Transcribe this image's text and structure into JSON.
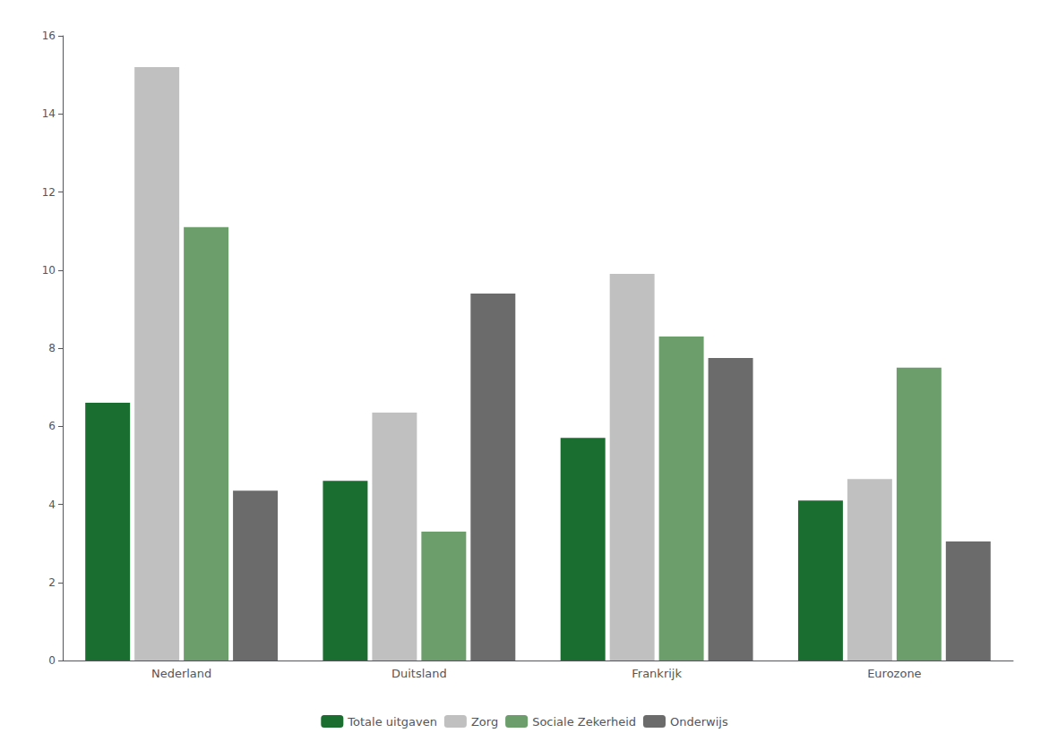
{
  "chart_data": {
    "type": "bar",
    "categories": [
      "Nederland",
      "Duitsland",
      "Frankrijk",
      "Eurozone"
    ],
    "series": [
      {
        "name": "Totale uitgaven",
        "color": "#1a6e30",
        "values": [
          6.6,
          4.6,
          5.7,
          4.1
        ]
      },
      {
        "name": "Zorg",
        "color": "#c0c0c0",
        "values": [
          15.2,
          6.35,
          9.9,
          4.65
        ]
      },
      {
        "name": "Sociale Zekerheid",
        "color": "#6b9e6b",
        "values": [
          11.1,
          3.3,
          8.3,
          7.5
        ]
      },
      {
        "name": "Onderwijs",
        "color": "#6b6b6b",
        "values": [
          4.35,
          9.4,
          7.75,
          3.05
        ]
      }
    ],
    "ylim": [
      0,
      16
    ],
    "yticks": [
      0,
      2,
      4,
      6,
      8,
      10,
      12,
      14,
      16
    ],
    "grid": false,
    "legend": "bottom"
  }
}
